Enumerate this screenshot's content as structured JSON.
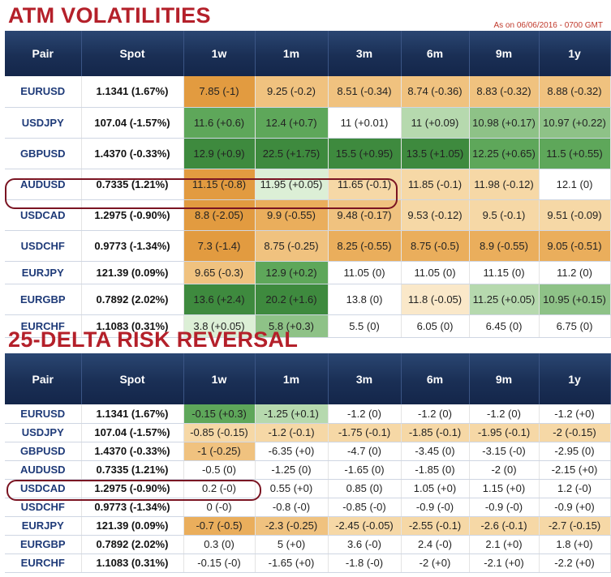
{
  "title_atm": "ATM VOLATILITIES",
  "title_rr": "25-DELTA RISK REVERSAL",
  "as_of": "As on 06/06/2016 - 0700 GMT",
  "headers": [
    "Pair",
    "Spot",
    "1w",
    "1m",
    "3m",
    "6m",
    "9m",
    "1y"
  ],
  "atm_rows": [
    {
      "pair": "EURUSD",
      "spot": "1.1341 (1.67%)",
      "cells": [
        "7.85 (-1)",
        "9.25 (-0.2)",
        "8.51 (-0.34)",
        "8.74 (-0.36)",
        "8.83 (-0.32)",
        "8.88 (-0.32)"
      ],
      "colors": [
        "o1",
        "o3",
        "o3",
        "o3",
        "o3",
        "o3"
      ]
    },
    {
      "pair": "USDJPY",
      "spot": "107.04 (-1.57%)",
      "cells": [
        "11.6 (+0.6)",
        "12.4 (+0.7)",
        "11 (+0.01)",
        "11 (+0.09)",
        "10.98 (+0.17)",
        "10.97 (+0.22)"
      ],
      "colors": [
        "g2",
        "g2",
        "w",
        "g4",
        "g3",
        "g3"
      ]
    },
    {
      "pair": "GBPUSD",
      "spot": "1.4370 (-0.33%)",
      "cells": [
        "12.9 (+0.9)",
        "22.5 (+1.75)",
        "15.5 (+0.95)",
        "13.5 (+1.05)",
        "12.25 (+0.65)",
        "11.5 (+0.55)"
      ],
      "colors": [
        "g1",
        "g1",
        "g1",
        "g1",
        "g2",
        "g2"
      ]
    },
    {
      "pair": "AUDUSD",
      "spot": "0.7335 (1.21%)",
      "cells": [
        "11.15 (-0.8)",
        "11.95 (+0.05)",
        "11.65 (-0.1)",
        "11.85 (-0.1)",
        "11.98 (-0.12)",
        "12.1 (0)"
      ],
      "colors": [
        "o1",
        "g5",
        "o4",
        "o4",
        "o4",
        "w"
      ]
    },
    {
      "pair": "USDCAD",
      "spot": "1.2975 (-0.90%)",
      "cells": [
        "8.8 (-2.05)",
        "9.9 (-0.55)",
        "9.48 (-0.17)",
        "9.53 (-0.12)",
        "9.5 (-0.1)",
        "9.51 (-0.09)"
      ],
      "colors": [
        "o1",
        "o2",
        "o3",
        "o4",
        "o4",
        "o4"
      ]
    },
    {
      "pair": "USDCHF",
      "spot": "0.9773 (-1.34%)",
      "cells": [
        "7.3 (-1.4)",
        "8.75 (-0.25)",
        "8.25 (-0.55)",
        "8.75 (-0.5)",
        "8.9 (-0.55)",
        "9.05 (-0.51)"
      ],
      "colors": [
        "o1",
        "o3",
        "o2",
        "o2",
        "o2",
        "o2"
      ]
    },
    {
      "pair": "EURJPY",
      "spot": "121.39 (0.09%)",
      "cells": [
        "9.65 (-0.3)",
        "12.9 (+0.2)",
        "11.05 (0)",
        "11.05 (0)",
        "11.15 (0)",
        "11.2 (0)"
      ],
      "colors": [
        "o3",
        "g2",
        "w",
        "w",
        "w",
        "w"
      ]
    },
    {
      "pair": "EURGBP",
      "spot": "0.7892 (2.02%)",
      "cells": [
        "13.6 (+2.4)",
        "20.2 (+1.6)",
        "13.8 (0)",
        "11.8 (-0.05)",
        "11.25 (+0.05)",
        "10.95 (+0.15)"
      ],
      "colors": [
        "g1",
        "g1",
        "w",
        "o5",
        "g4",
        "g3"
      ]
    },
    {
      "pair": "EURCHF",
      "spot": "1.1083 (0.31%)",
      "cells": [
        "3.8 (+0.05)",
        "5.8 (+0.3)",
        "5.5 (0)",
        "6.05 (0)",
        "6.45 (0)",
        "6.75 (0)"
      ],
      "colors": [
        "g5",
        "g3",
        "w",
        "w",
        "w",
        "w"
      ]
    }
  ],
  "rr_rows": [
    {
      "pair": "EURUSD",
      "spot": "1.1341 (1.67%)",
      "cells": [
        "-0.15 (+0.3)",
        "-1.25 (+0.1)",
        "-1.2 (0)",
        "-1.2 (0)",
        "-1.2 (0)",
        "-1.2 (+0)"
      ],
      "colors": [
        "g2",
        "g4",
        "w",
        "w",
        "w",
        "w"
      ]
    },
    {
      "pair": "USDJPY",
      "spot": "107.04 (-1.57%)",
      "cells": [
        "-0.85 (-0.15)",
        "-1.2 (-0.1)",
        "-1.75 (-0.1)",
        "-1.85 (-0.1)",
        "-1.95 (-0.1)",
        "-2 (-0.15)"
      ],
      "colors": [
        "o4",
        "o4",
        "o4",
        "o4",
        "o4",
        "o4"
      ]
    },
    {
      "pair": "GBPUSD",
      "spot": "1.4370 (-0.33%)",
      "cells": [
        "-1 (-0.25)",
        "-6.35 (+0)",
        "-4.7 (0)",
        "-3.45 (0)",
        "-3.15 (-0)",
        "-2.95 (0)"
      ],
      "colors": [
        "o3",
        "w",
        "w",
        "w",
        "w",
        "w"
      ]
    },
    {
      "pair": "AUDUSD",
      "spot": "0.7335 (1.21%)",
      "cells": [
        "-0.5 (0)",
        "-1.25 (0)",
        "-1.65 (0)",
        "-1.85 (0)",
        "-2 (0)",
        "-2.15 (+0)"
      ],
      "colors": [
        "w",
        "w",
        "w",
        "w",
        "w",
        "w"
      ]
    },
    {
      "pair": "USDCAD",
      "spot": "1.2975 (-0.90%)",
      "cells": [
        "0.2 (-0)",
        "0.55 (+0)",
        "0.85 (0)",
        "1.05 (+0)",
        "1.15 (+0)",
        "1.2 (-0)"
      ],
      "colors": [
        "w",
        "w",
        "w",
        "w",
        "w",
        "w"
      ]
    },
    {
      "pair": "USDCHF",
      "spot": "0.9773 (-1.34%)",
      "cells": [
        "0 (-0)",
        "-0.8 (-0)",
        "-0.85 (-0)",
        "-0.9 (-0)",
        "-0.9 (-0)",
        "-0.9 (+0)"
      ],
      "colors": [
        "w",
        "w",
        "w",
        "w",
        "w",
        "w"
      ]
    },
    {
      "pair": "EURJPY",
      "spot": "121.39 (0.09%)",
      "cells": [
        "-0.7 (-0.5)",
        "-2.3 (-0.25)",
        "-2.45 (-0.05)",
        "-2.55 (-0.1)",
        "-2.6 (-0.1)",
        "-2.7 (-0.15)"
      ],
      "colors": [
        "o2",
        "o3",
        "o4",
        "o4",
        "o4",
        "o4"
      ]
    },
    {
      "pair": "EURGBP",
      "spot": "0.7892 (2.02%)",
      "cells": [
        "0.3 (0)",
        "5 (+0)",
        "3.6 (-0)",
        "2.4 (-0)",
        "2.1 (+0)",
        "1.8 (+0)"
      ],
      "colors": [
        "w",
        "w",
        "w",
        "w",
        "w",
        "w"
      ]
    },
    {
      "pair": "EURCHF",
      "spot": "1.1083 (0.31%)",
      "cells": [
        "-0.15 (-0)",
        "-1.65 (+0)",
        "-1.8 (-0)",
        "-2 (+0)",
        "-2.1 (+0)",
        "-2.2 (+0)"
      ],
      "colors": [
        "w",
        "w",
        "w",
        "w",
        "w",
        "w"
      ]
    }
  ],
  "highlight_pair": "USDCAD"
}
